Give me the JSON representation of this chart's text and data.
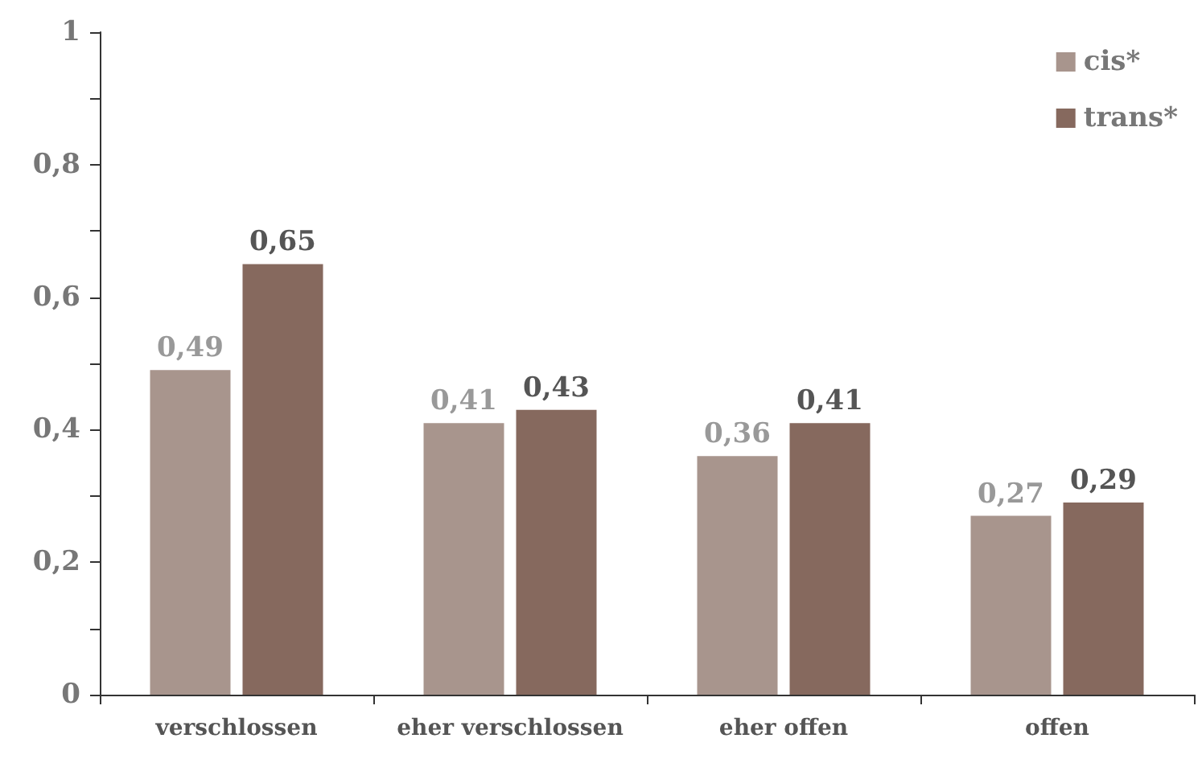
{
  "chart_data": {
    "type": "bar",
    "categories": [
      "verschlossen",
      "eher verschlossen",
      "eher offen",
      "offen"
    ],
    "series": [
      {
        "name": "cis*",
        "color": "#a8958d",
        "values": [
          0.49,
          0.41,
          0.36,
          0.27
        ],
        "value_labels": [
          "0,49",
          "0,41",
          "0,36",
          "0,27"
        ]
      },
      {
        "name": "trans*",
        "color": "#86695e",
        "values": [
          0.65,
          0.43,
          0.41,
          0.29
        ],
        "value_labels": [
          "0,65",
          "0,43",
          "0,41",
          "0,29"
        ]
      }
    ],
    "ylim": [
      0,
      1
    ],
    "yticks": [
      {
        "value": 0,
        "label": "0"
      },
      {
        "value": 0.1,
        "label": null
      },
      {
        "value": 0.2,
        "label": "0,2"
      },
      {
        "value": 0.3,
        "label": null
      },
      {
        "value": 0.4,
        "label": "0,4"
      },
      {
        "value": 0.5,
        "label": null
      },
      {
        "value": 0.6,
        "label": "0,6"
      },
      {
        "value": 0.7,
        "label": null
      },
      {
        "value": 0.8,
        "label": "0,8"
      },
      {
        "value": 0.9,
        "label": null
      },
      {
        "value": 1,
        "label": "1"
      }
    ],
    "grid": false,
    "legend": "top right"
  }
}
